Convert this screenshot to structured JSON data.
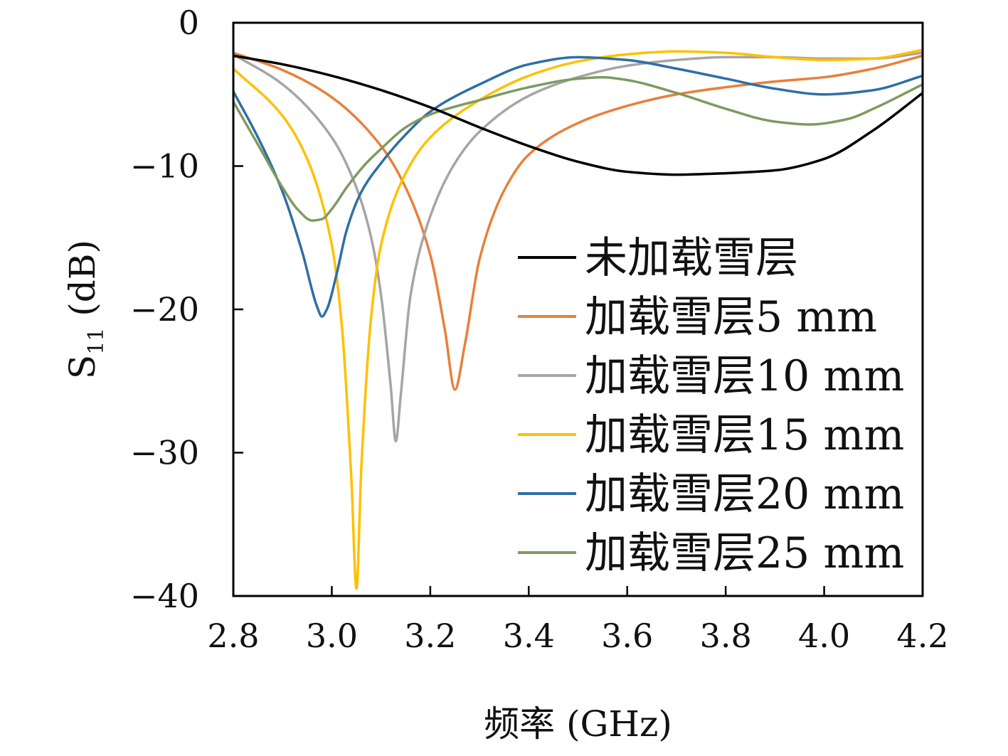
{
  "chart_data": {
    "type": "line",
    "title": "",
    "xlabel": "频率 (GHz)",
    "ylabel": "S11 (dB)",
    "ylabel_parts": {
      "main": "S",
      "sub": "11",
      "unit": " (dB)"
    },
    "xlim": [
      2.8,
      4.2
    ],
    "ylim": [
      -40,
      0
    ],
    "xticks": [
      2.8,
      3.0,
      3.2,
      3.4,
      3.6,
      3.8,
      4.0,
      4.2
    ],
    "xtick_labels": [
      "2.8",
      "3.0",
      "3.2",
      "3.4",
      "3.6",
      "3.8",
      "4.0",
      "4.2"
    ],
    "yticks": [
      0,
      -10,
      -20,
      -30,
      -40
    ],
    "ytick_labels": [
      "0",
      "−10",
      "−20",
      "−30",
      "−40"
    ],
    "grid": false,
    "legend_position": "right",
    "series": [
      {
        "name": "未加载雪层",
        "color": "#000000",
        "x": [
          2.8,
          2.9,
          3.0,
          3.1,
          3.2,
          3.3,
          3.4,
          3.5,
          3.6,
          3.7,
          3.8,
          3.9,
          4.0,
          4.1,
          4.2
        ],
        "y": [
          -2.3,
          -2.9,
          -3.7,
          -4.7,
          -5.9,
          -7.3,
          -8.6,
          -9.7,
          -10.4,
          -10.6,
          -10.5,
          -10.3,
          -9.5,
          -7.5,
          -4.9
        ]
      },
      {
        "name": "加载雪层5 mm",
        "color": "#E8803A",
        "x": [
          2.8,
          2.9,
          3.0,
          3.1,
          3.15,
          3.2,
          3.23,
          3.25,
          3.27,
          3.3,
          3.35,
          3.4,
          3.5,
          3.6,
          3.7,
          3.8,
          3.9,
          4.0,
          4.1,
          4.2
        ],
        "y": [
          -2.1,
          -3.3,
          -5.2,
          -8.6,
          -11.5,
          -16.2,
          -21.5,
          -25.6,
          -22.5,
          -16.5,
          -11.7,
          -9.2,
          -7.0,
          -5.8,
          -5.0,
          -4.5,
          -4.1,
          -3.8,
          -3.2,
          -2.3
        ]
      },
      {
        "name": "加载雪层10 mm",
        "color": "#A5A5A5",
        "x": [
          2.8,
          2.9,
          3.0,
          3.05,
          3.08,
          3.1,
          3.12,
          3.13,
          3.14,
          3.16,
          3.2,
          3.25,
          3.3,
          3.4,
          3.5,
          3.6,
          3.7,
          3.8,
          3.9,
          4.0,
          4.1,
          4.2
        ],
        "y": [
          -2.2,
          -4.3,
          -8.0,
          -11.5,
          -15.0,
          -19.0,
          -25.5,
          -29.2,
          -26.0,
          -19.0,
          -13.5,
          -9.8,
          -7.6,
          -5.1,
          -3.8,
          -3.0,
          -2.6,
          -2.4,
          -2.4,
          -2.5,
          -2.5,
          -2.1
        ]
      },
      {
        "name": "加载雪层15 mm",
        "color": "#FFC000",
        "x": [
          2.8,
          2.9,
          2.95,
          3.0,
          3.02,
          3.04,
          3.05,
          3.06,
          3.08,
          3.1,
          3.15,
          3.2,
          3.3,
          3.4,
          3.5,
          3.6,
          3.7,
          3.8,
          3.9,
          4.0,
          4.1,
          4.2
        ],
        "y": [
          -3.2,
          -6.5,
          -9.5,
          -15.5,
          -21.0,
          -32.0,
          -39.5,
          -31.0,
          -20.5,
          -15.5,
          -10.5,
          -8.0,
          -5.4,
          -3.7,
          -2.7,
          -2.2,
          -2.0,
          -2.1,
          -2.4,
          -2.6,
          -2.5,
          -1.9
        ]
      },
      {
        "name": "加载雪层20 mm",
        "color": "#2E6FA6",
        "x": [
          2.8,
          2.85,
          2.9,
          2.94,
          2.97,
          2.98,
          2.99,
          3.01,
          3.03,
          3.06,
          3.1,
          3.15,
          3.2,
          3.3,
          3.4,
          3.5,
          3.6,
          3.7,
          3.8,
          3.9,
          4.0,
          4.1,
          4.2
        ],
        "y": [
          -4.8,
          -8.0,
          -11.8,
          -16.0,
          -19.8,
          -20.5,
          -20.0,
          -17.5,
          -14.5,
          -11.8,
          -9.8,
          -7.8,
          -6.2,
          -4.3,
          -2.9,
          -2.4,
          -2.6,
          -3.2,
          -3.9,
          -4.6,
          -5.0,
          -4.7,
          -3.7
        ]
      },
      {
        "name": "加载雪层25 mm",
        "color": "#7F9A5F",
        "x": [
          2.8,
          2.85,
          2.9,
          2.93,
          2.96,
          2.98,
          3.0,
          3.03,
          3.07,
          3.1,
          3.15,
          3.2,
          3.3,
          3.4,
          3.5,
          3.55,
          3.6,
          3.7,
          3.8,
          3.9,
          3.97,
          4.05,
          4.1,
          4.2
        ],
        "y": [
          -5.5,
          -8.5,
          -11.5,
          -13.0,
          -13.8,
          -13.7,
          -13.0,
          -11.5,
          -9.8,
          -8.8,
          -7.3,
          -6.4,
          -5.4,
          -4.5,
          -3.9,
          -3.8,
          -4.0,
          -4.9,
          -6.0,
          -6.9,
          -7.1,
          -6.7,
          -6.0,
          -4.3
        ]
      }
    ]
  }
}
